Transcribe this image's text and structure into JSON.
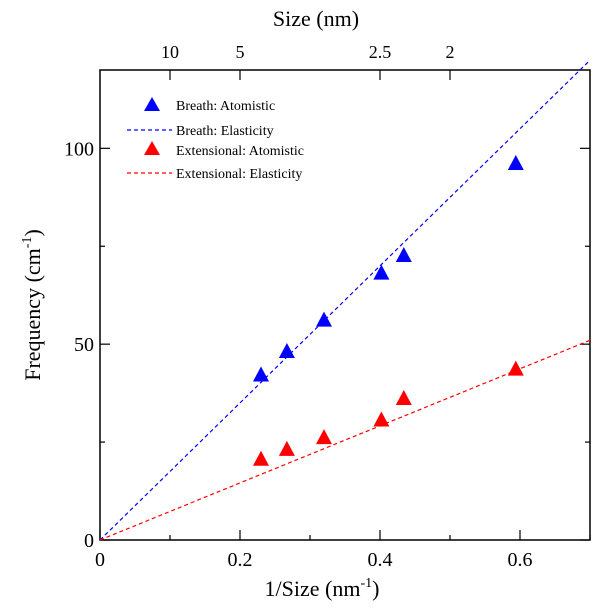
{
  "chart_data": {
    "type": "scatter",
    "x_axis": {
      "label": "1/Size (nm",
      "label_sup": "-1",
      "label_end": ")",
      "range": [
        0,
        0.7
      ],
      "ticks": [
        {
          "value": 0,
          "label": "0"
        },
        {
          "value": 0.2,
          "label": "0.2"
        },
        {
          "value": 0.4,
          "label": "0.4"
        },
        {
          "value": 0.6,
          "label": "0.6"
        }
      ],
      "minor_ticks": [
        0.1,
        0.3,
        0.5,
        0.7
      ]
    },
    "y_axis": {
      "label": "Frequency (cm",
      "label_sup": "-1",
      "label_end": ")",
      "range": [
        0,
        120
      ],
      "ticks": [
        {
          "value": 0,
          "label": "0"
        },
        {
          "value": 50,
          "label": "50"
        },
        {
          "value": 100,
          "label": "100"
        }
      ],
      "minor_ticks": [
        25,
        75
      ]
    },
    "top_axis": {
      "label": "Size (nm)",
      "ticks": [
        {
          "value": 0.1,
          "label": "10"
        },
        {
          "value": 0.2,
          "label": "5"
        },
        {
          "value": 0.4,
          "label": "2.5"
        },
        {
          "value": 0.5,
          "label": "2"
        }
      ]
    },
    "grid": false,
    "legend_position": "top-left",
    "series": [
      {
        "name": "Breath: Atomistic",
        "kind": "scatter",
        "marker": "triangle",
        "color": "#0000ff",
        "points": [
          [
            0.23,
            42
          ],
          [
            0.267,
            48
          ],
          [
            0.32,
            56
          ],
          [
            0.402,
            68
          ],
          [
            0.434,
            72.5
          ],
          [
            0.594,
            96
          ]
        ]
      },
      {
        "name": "Breath: Elasticity",
        "kind": "line",
        "dash": true,
        "color": "#0000ff",
        "points": [
          [
            0,
            0
          ],
          [
            0.7,
            122.5
          ]
        ]
      },
      {
        "name": "Extensional: Atomistic",
        "kind": "scatter",
        "marker": "triangle",
        "color": "#ff0000",
        "points": [
          [
            0.23,
            20.5
          ],
          [
            0.267,
            23
          ],
          [
            0.32,
            26
          ],
          [
            0.402,
            30.5
          ],
          [
            0.434,
            36
          ],
          [
            0.594,
            43.5
          ]
        ]
      },
      {
        "name": "Extensional: Elasticity",
        "kind": "line",
        "dash": true,
        "color": "#ff0000",
        "points": [
          [
            0,
            0
          ],
          [
            0.7,
            51
          ]
        ]
      }
    ]
  }
}
